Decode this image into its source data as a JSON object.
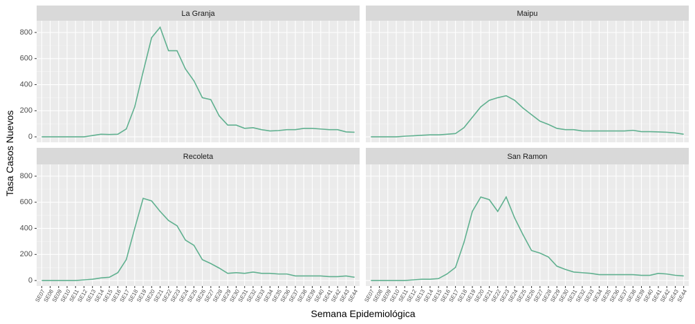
{
  "x_label": "Semana Epidemiológica",
  "y_label": "Tasa Casos Nuevos",
  "chart_data": [
    {
      "type": "line",
      "title": "La Granja",
      "color": "#5fb08f",
      "grid": true,
      "categories": [
        "SE07",
        "SE08",
        "SE09",
        "SE10",
        "SE11",
        "SE12",
        "SE13",
        "SE14",
        "SE15",
        "SE16",
        "SE17",
        "SE18",
        "SE19",
        "SE20",
        "SE21",
        "SE22",
        "SE23",
        "SE24",
        "SE25",
        "SE26",
        "SE27",
        "SE28",
        "SE29",
        "SE30",
        "SE31",
        "SE32",
        "SE33",
        "SE34",
        "SE35",
        "SE36",
        "SE37",
        "SE38",
        "SE39",
        "SE40",
        "SE41",
        "SE42",
        "SE43",
        "SE44"
      ],
      "values": [
        0,
        0,
        0,
        0,
        0,
        0,
        10,
        20,
        18,
        20,
        60,
        230,
        500,
        760,
        840,
        660,
        660,
        520,
        430,
        300,
        285,
        160,
        90,
        90,
        65,
        70,
        55,
        45,
        48,
        55,
        55,
        65,
        65,
        60,
        55,
        55,
        38,
        35
      ],
      "ylim": [
        -42,
        890
      ],
      "yticks": [
        0,
        200,
        400,
        600,
        800
      ]
    },
    {
      "type": "line",
      "title": "Maipu",
      "color": "#5fb08f",
      "grid": true,
      "categories": [
        "SE07",
        "SE08",
        "SE09",
        "SE10",
        "SE11",
        "SE12",
        "SE13",
        "SE14",
        "SE15",
        "SE16",
        "SE17",
        "SE18",
        "SE19",
        "SE20",
        "SE21",
        "SE22",
        "SE23",
        "SE24",
        "SE25",
        "SE26",
        "SE27",
        "SE28",
        "SE29",
        "SE30",
        "SE31",
        "SE32",
        "SE33",
        "SE34",
        "SE35",
        "SE36",
        "SE37",
        "SE38",
        "SE39",
        "SE40",
        "SE41",
        "SE42",
        "SE43",
        "SE44"
      ],
      "values": [
        0,
        0,
        0,
        0,
        5,
        8,
        12,
        15,
        15,
        20,
        25,
        70,
        150,
        230,
        280,
        300,
        315,
        280,
        220,
        170,
        120,
        95,
        65,
        55,
        55,
        45,
        45,
        45,
        45,
        45,
        45,
        50,
        40,
        40,
        38,
        35,
        30,
        20
      ],
      "ylim": [
        -42,
        890
      ],
      "yticks": [
        0,
        200,
        400,
        600,
        800
      ]
    },
    {
      "type": "line",
      "title": "Recoleta",
      "color": "#5fb08f",
      "grid": true,
      "categories": [
        "SE07",
        "SE08",
        "SE09",
        "SE10",
        "SE11",
        "SE12",
        "SE13",
        "SE14",
        "SE15",
        "SE16",
        "SE17",
        "SE18",
        "SE19",
        "SE20",
        "SE21",
        "SE22",
        "SE23",
        "SE24",
        "SE25",
        "SE26",
        "SE27",
        "SE28",
        "SE29",
        "SE30",
        "SE31",
        "SE32",
        "SE33",
        "SE34",
        "SE35",
        "SE36",
        "SE37",
        "SE38",
        "SE39",
        "SE40",
        "SE41",
        "SE42",
        "SE43",
        "SE44"
      ],
      "values": [
        0,
        0,
        0,
        0,
        0,
        5,
        10,
        20,
        25,
        60,
        160,
        400,
        630,
        610,
        530,
        460,
        420,
        310,
        270,
        160,
        130,
        95,
        55,
        60,
        55,
        65,
        55,
        55,
        50,
        50,
        35,
        35,
        35,
        35,
        30,
        30,
        35,
        25
      ],
      "ylim": [
        -42,
        890
      ],
      "yticks": [
        0,
        200,
        400,
        600,
        800
      ]
    },
    {
      "type": "line",
      "title": "San Ramon",
      "color": "#5fb08f",
      "grid": true,
      "categories": [
        "SE07",
        "SE08",
        "SE09",
        "SE10",
        "SE11",
        "SE12",
        "SE13",
        "SE14",
        "SE15",
        "SE16",
        "SE17",
        "SE18",
        "SE19",
        "SE20",
        "SE21",
        "SE22",
        "SE23",
        "SE24",
        "SE25",
        "SE26",
        "SE27",
        "SE28",
        "SE29",
        "SE30",
        "SE31",
        "SE32",
        "SE33",
        "SE34",
        "SE35",
        "SE36",
        "SE37",
        "SE38",
        "SE39",
        "SE40",
        "SE41",
        "SE42",
        "SE43",
        "SE44"
      ],
      "values": [
        0,
        0,
        0,
        0,
        0,
        5,
        10,
        10,
        15,
        50,
        100,
        290,
        530,
        640,
        620,
        530,
        640,
        480,
        350,
        230,
        210,
        180,
        110,
        85,
        65,
        60,
        55,
        45,
        45,
        45,
        45,
        45,
        40,
        40,
        55,
        50,
        40,
        35
      ],
      "ylim": [
        -42,
        890
      ],
      "yticks": [
        0,
        200,
        400,
        600,
        800
      ]
    }
  ]
}
